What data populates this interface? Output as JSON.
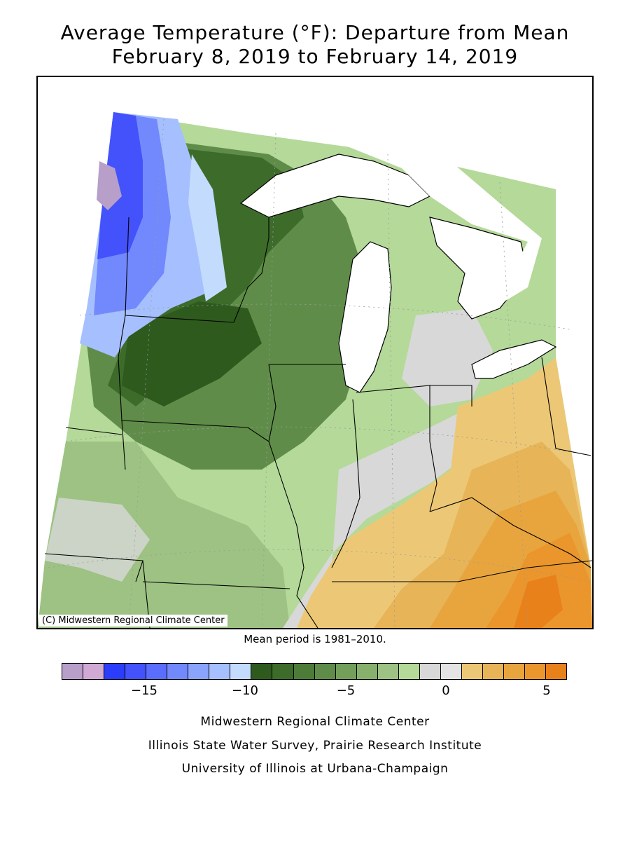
{
  "title": {
    "line1": "Average Temperature (°F): Departure from Mean",
    "line2": "February 8, 2019 to February 14, 2019"
  },
  "map": {
    "copyright": "(C) Midwestern Regional Climate Center",
    "region": "Upper Midwest and Great Lakes states"
  },
  "mean_period": "Mean period is 1981–2010.",
  "legend": {
    "colors": [
      "#b89fc9",
      "#d0aad4",
      "#2b3dfa",
      "#4352fb",
      "#5a6dfc",
      "#7189fd",
      "#8aa4fd",
      "#a6bffe",
      "#c3dcfe",
      "#2e5a1e",
      "#3c6b2a",
      "#4d7c39",
      "#5f8d49",
      "#739f5b",
      "#88b06d",
      "#9dc283",
      "#b4d999",
      "#d8d8d8",
      "#e4e4e4",
      "#ecc876",
      "#e8b458",
      "#e8a53e",
      "#ea962c",
      "#e9811a"
    ],
    "ticks": [
      {
        "label": "−15"
      },
      {
        "label": "−10"
      },
      {
        "label": "−5"
      },
      {
        "label": "0"
      },
      {
        "label": "5"
      }
    ]
  },
  "credits": {
    "line1": "Midwestern Regional Climate Center",
    "line2": "Illinois State Water Survey, Prairie Research Institute",
    "line3": "University of Illinois at Urbana-Champaign"
  }
}
